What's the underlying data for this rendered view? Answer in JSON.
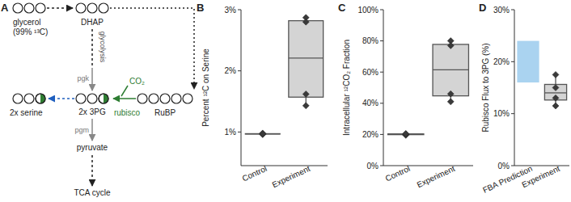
{
  "diagram": {
    "label": "A",
    "nodes": [
      {
        "label": "glycerol",
        "note": "(99% ¹³C)"
      },
      {
        "label": "DHAP"
      },
      {
        "label": "2x 3PG"
      },
      {
        "label": "RuBP"
      },
      {
        "label": "2x serine"
      },
      {
        "label": "pyruvate"
      },
      {
        "label": "TCA cycle"
      }
    ],
    "edge_labels": [
      "glycolysis",
      "pgk",
      "CO₂",
      "rubisco",
      "pgm"
    ]
  },
  "chart_data": [
    {
      "type": "box",
      "title": "B",
      "ylabel": "Percent ¹²C on Serine",
      "categories": [
        "Control",
        "Experiment"
      ],
      "color": "#d4d4d4",
      "ylim": [
        0.45,
        3.0
      ],
      "yticks": [
        {
          "value": 1,
          "label": "1%"
        },
        {
          "value": 2,
          "label": "2%"
        },
        {
          "value": 3,
          "label": "3%"
        }
      ],
      "boxes": [
        {
          "points": [
            0.97,
            0.96,
            0.98,
            0.97
          ],
          "whisker_low": 0.96,
          "q1": 0.9675,
          "median": 0.97,
          "q3": 0.9725,
          "whisker_high": 0.98
        },
        {
          "points": [
            2.87,
            2.8,
            1.62,
            1.43
          ],
          "whisker_low": 1.43,
          "q1": 1.57,
          "median": 2.21,
          "q3": 2.82,
          "whisker_high": 2.87
        }
      ]
    },
    {
      "type": "box",
      "title": "C",
      "ylabel": "Intracellular ¹²CO₂ Fraction",
      "categories": [
        "Control",
        "Experiment"
      ],
      "color": "#d4d4d4",
      "ylim": [
        0,
        100
      ],
      "yticks": [
        {
          "value": 0,
          "label": "0%"
        },
        {
          "value": 20,
          "label": "20%"
        },
        {
          "value": 40,
          "label": "40%"
        },
        {
          "value": 60,
          "label": "60%"
        },
        {
          "value": 80,
          "label": "80%"
        },
        {
          "value": 100,
          "label": "100%"
        }
      ],
      "boxes": [
        {
          "points": [
            19.5,
            20,
            20.3,
            20.5
          ],
          "whisker_low": 19.5,
          "q1": 19.875,
          "median": 20.15,
          "q3": 20.35,
          "whisker_high": 20.5
        },
        {
          "points": [
            80,
            77,
            46,
            41
          ],
          "whisker_low": 41,
          "q1": 44.75,
          "median": 61.5,
          "q3": 77.75,
          "whisker_high": 80
        }
      ]
    },
    {
      "type": "box",
      "title": "D",
      "ylabel": "Rubisco Flux to 3PG (%)",
      "categories": [
        "FBA Prediction",
        "Experiment"
      ],
      "color": "#d4d4d4",
      "ylim": [
        0,
        30
      ],
      "yticks": [
        {
          "value": 0,
          "label": "0%"
        },
        {
          "value": 10,
          "label": "10%"
        },
        {
          "value": 20,
          "label": "20%"
        },
        {
          "value": 30,
          "label": "30%"
        }
      ],
      "boxes": [
        {
          "range": [
            16,
            24
          ],
          "color": "#aad3f0"
        },
        {
          "points": [
            17.5,
            15,
            13,
            11.5
          ],
          "whisker_low": 11.5,
          "q1": 12.625,
          "median": 14,
          "q3": 15.625,
          "whisker_high": 17.5
        }
      ]
    }
  ]
}
